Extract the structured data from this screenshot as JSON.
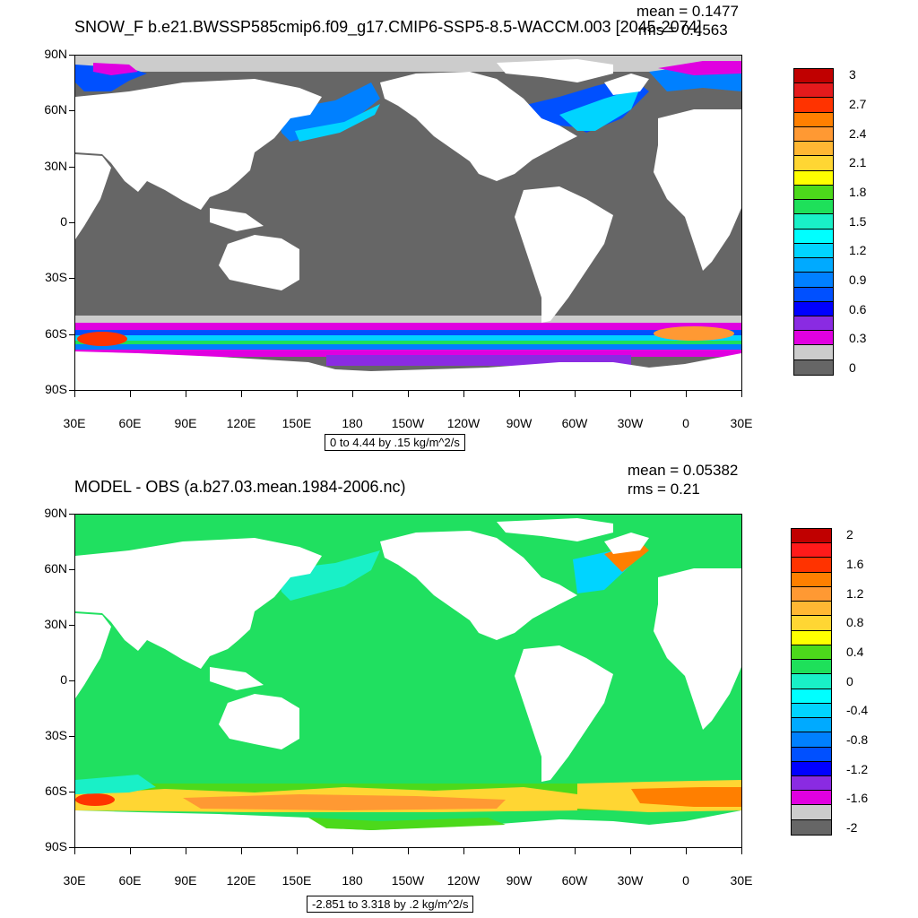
{
  "top": {
    "title": "SNOW_F b.e21.BWSSP585cmip6.f09_g17.CMIP6-SSP5-8.5-WACCM.003 [2045-2074]",
    "mean_label": "mean = 0.1477",
    "rms_label": "rms = 0.4563",
    "range_label": "0 to 4.44 by .15 kg/m^2/s",
    "colorbar": {
      "labels": [
        "3",
        "2.7",
        "2.4",
        "2.1",
        "1.8",
        "1.5",
        "1.2",
        "0.9",
        "0.6",
        "0.3",
        "0"
      ],
      "colors": [
        "#c00000",
        "#e41a1c",
        "#ff3300",
        "#ff7f00",
        "#ff9933",
        "#ffb733",
        "#ffd633",
        "#ffff00",
        "#4cd91b",
        "#1ee05a",
        "#19f0c7",
        "#00ffff",
        "#00d4ff",
        "#00aaff",
        "#0080ff",
        "#0050ff",
        "#0000ff",
        "#8a2be2",
        "#e000e0",
        "#cccccc",
        "#666666"
      ]
    }
  },
  "bottom": {
    "title": "MODEL - OBS (a.b27.03.mean.1984-2006.nc)",
    "mean_label": "mean = 0.05382",
    "rms_label": "rms = 0.21",
    "range_label": "-2.851 to 3.318 by .2 kg/m^2/s",
    "colorbar": {
      "labels": [
        "2",
        "1.6",
        "1.2",
        "0.8",
        "0.4",
        "0",
        "-0.4",
        "-0.8",
        "-1.2",
        "-1.6",
        "-2"
      ],
      "colors": [
        "#c00000",
        "#ff1a1a",
        "#ff3300",
        "#ff7f00",
        "#ff9933",
        "#ffb733",
        "#ffd633",
        "#ffff00",
        "#4cd91b",
        "#1ee05a",
        "#19f0c7",
        "#00ffff",
        "#00d4ff",
        "#00aaff",
        "#0080ff",
        "#0050ff",
        "#0000ff",
        "#8a2be2",
        "#e000e0",
        "#cccccc",
        "#666666"
      ]
    }
  },
  "axes": {
    "lat_labels": [
      "90N",
      "60N",
      "30N",
      "0",
      "30S",
      "60S",
      "90S"
    ],
    "lon_labels": [
      "30E",
      "60E",
      "90E",
      "120E",
      "150E",
      "180",
      "150W",
      "120W",
      "90W",
      "60W",
      "30W",
      "0",
      "30E"
    ]
  },
  "colors": {
    "ocean_top": "#666666",
    "ocean_bottom": "#20e060",
    "land": "#ffffff"
  }
}
